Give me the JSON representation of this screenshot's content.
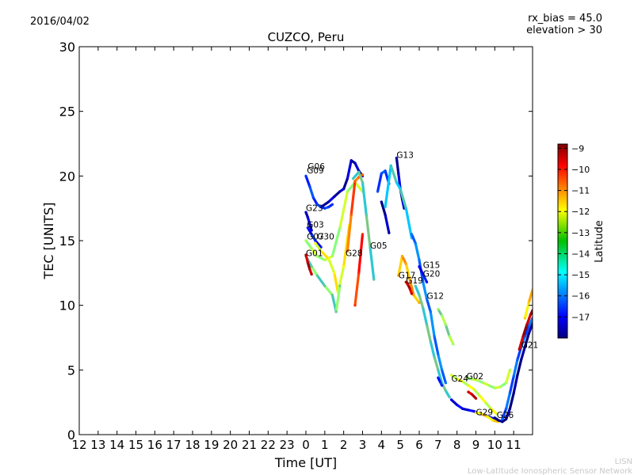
{
  "header": {
    "date": "2016/04/02",
    "rx_bias": "rx_bias = 45.0",
    "elevation": "elevation > 30"
  },
  "footer": {
    "line1": "LISN",
    "line2": "Low-Latitude Ionospheric Sensor Network"
  },
  "chart_data": {
    "type": "scatter",
    "title": "CUZCO, Peru",
    "xlabel": "Time [UT]",
    "ylabel": "TEC [UNITS]",
    "x_tick_labels": [
      "12",
      "13",
      "14",
      "15",
      "16",
      "17",
      "18",
      "19",
      "20",
      "21",
      "22",
      "23",
      "0",
      "1",
      "2",
      "3",
      "4",
      "5",
      "6",
      "7",
      "8",
      "9",
      "10",
      "11"
    ],
    "xlim": [
      12,
      36
    ],
    "ylim": [
      0,
      30
    ],
    "y_ticks": [
      0,
      5,
      10,
      15,
      20,
      25,
      30
    ],
    "grid": false,
    "colorbar": {
      "label": "Latitude",
      "range": [
        -18,
        -8.8
      ],
      "ticks": [
        -9,
        -10,
        -11,
        -12,
        -13,
        -14,
        -15,
        -16,
        -17
      ]
    },
    "satellite_labels": [
      {
        "label": "G06",
        "x": 24.1,
        "y": 20.5
      },
      {
        "label": "G09",
        "x": 24.05,
        "y": 20.2
      },
      {
        "label": "G23",
        "x": 24.0,
        "y": 17.3
      },
      {
        "label": "G03",
        "x": 24.05,
        "y": 16.0
      },
      {
        "label": "G07",
        "x": 24.05,
        "y": 15.1
      },
      {
        "label": "G30",
        "x": 24.6,
        "y": 15.1
      },
      {
        "label": "G01",
        "x": 24.0,
        "y": 13.8
      },
      {
        "label": "G28",
        "x": 26.1,
        "y": 13.8
      },
      {
        "label": "G05",
        "x": 27.4,
        "y": 14.4
      },
      {
        "label": "G13",
        "x": 28.8,
        "y": 21.4
      },
      {
        "label": "G15",
        "x": 30.2,
        "y": 12.9
      },
      {
        "label": "G20",
        "x": 30.2,
        "y": 12.2
      },
      {
        "label": "G17",
        "x": 28.9,
        "y": 12.1
      },
      {
        "label": "G19",
        "x": 29.3,
        "y": 11.7
      },
      {
        "label": "G12",
        "x": 30.4,
        "y": 10.5
      },
      {
        "label": "G24",
        "x": 31.7,
        "y": 4.1
      },
      {
        "label": "G02",
        "x": 32.5,
        "y": 4.3
      },
      {
        "label": "G29",
        "x": 33.0,
        "y": 1.5
      },
      {
        "label": "G26",
        "x": 34.1,
        "y": 1.3
      },
      {
        "label": "G21",
        "x": 35.4,
        "y": 6.7
      }
    ],
    "series": [
      {
        "label_ref": "G09",
        "lat": -16.2,
        "x": [
          24.0,
          24.2,
          24.4,
          24.6,
          24.8,
          25.0,
          25.2,
          25.4
        ],
        "y": [
          20.0,
          19.2,
          18.3,
          17.8,
          17.6,
          17.5,
          17.6,
          17.8
        ]
      },
      {
        "label_ref": "G06",
        "lat": -17.5,
        "x": [
          24.9,
          25.2,
          25.5,
          25.8,
          26.0,
          26.2,
          26.4,
          26.6,
          26.8,
          27.0
        ],
        "y": [
          17.7,
          18.0,
          18.4,
          18.8,
          19.0,
          19.8,
          21.2,
          21.0,
          20.4,
          20.0
        ]
      },
      {
        "label_ref": "G23",
        "lat": -17.3,
        "x": [
          24.0,
          24.1,
          24.2,
          24.3
        ],
        "y": [
          17.2,
          16.8,
          16.3,
          15.8
        ]
      },
      {
        "label_ref": "G03",
        "lat": -16.5,
        "x": [
          24.1,
          24.3,
          24.5,
          24.8
        ],
        "y": [
          16.0,
          15.5,
          15.0,
          14.5
        ]
      },
      {
        "label_ref": "G07",
        "lat": -13.0,
        "x": [
          24.0,
          24.3,
          24.6,
          25.0,
          25.4,
          25.8,
          26.2,
          26.6,
          27.0
        ],
        "y": [
          15.0,
          14.4,
          13.8,
          13.5,
          13.8,
          16.0,
          18.8,
          19.5,
          18.8
        ]
      },
      {
        "label_ref": "G30",
        "lat": -12.3,
        "x": [
          24.5,
          24.8,
          25.2,
          25.5,
          25.7,
          26.0,
          26.3
        ],
        "y": [
          14.8,
          14.2,
          13.6,
          12.5,
          11.0,
          13.0,
          16.2
        ]
      },
      {
        "label_ref": "G01",
        "lat": -13.6,
        "x": [
          24.0,
          24.3,
          24.6,
          25.0,
          25.4,
          25.6,
          25.8
        ],
        "y": [
          13.8,
          13.0,
          12.3,
          11.5,
          10.8,
          9.5,
          11.5
        ]
      },
      {
        "label_ref": "G01r",
        "lat": -9.3,
        "x": [
          24.0,
          24.1,
          24.2,
          24.3
        ],
        "y": [
          13.9,
          13.3,
          12.8,
          12.4
        ]
      },
      {
        "label_ref": "G28",
        "lat": -10.8,
        "x": [
          26.2,
          26.4,
          26.6,
          26.8,
          27.0
        ],
        "y": [
          14.2,
          17.0,
          19.6,
          19.9,
          20.1
        ]
      },
      {
        "label_ref": "G28b",
        "lat": -10.3,
        "x": [
          26.6,
          26.8,
          27.0
        ],
        "y": [
          10.0,
          12.5,
          15.5
        ]
      },
      {
        "label_ref": "G05",
        "lat": -13.8,
        "x": [
          26.5,
          26.8,
          27.0,
          27.2,
          27.4,
          27.6
        ],
        "y": [
          19.8,
          20.3,
          19.5,
          17.0,
          14.5,
          12.0
        ]
      },
      {
        "label_ref": "G05b",
        "lat": -16.0,
        "x": [
          27.8,
          28.0,
          28.2,
          28.4
        ],
        "y": [
          18.8,
          20.2,
          20.4,
          19.4
        ]
      },
      {
        "label_ref": "G13",
        "lat": -17.5,
        "x": [
          28.8,
          28.9,
          29.0,
          29.1,
          29.2
        ],
        "y": [
          21.4,
          20.2,
          19.0,
          18.2,
          17.5
        ]
      },
      {
        "label_ref": "G13b",
        "lat": -17.7,
        "x": [
          28.0,
          28.2,
          28.4
        ],
        "y": [
          18.0,
          17.0,
          15.6
        ]
      },
      {
        "label_ref": "G13c",
        "lat": -14.2,
        "x": [
          28.2,
          28.5,
          28.8,
          29.0,
          29.3,
          29.6
        ],
        "y": [
          17.6,
          20.8,
          19.5,
          19.0,
          17.5,
          15.2
        ]
      },
      {
        "label_ref": "G17",
        "lat": -11.5,
        "x": [
          28.9,
          29.1,
          29.3,
          29.5,
          29.7,
          30.0
        ],
        "y": [
          12.3,
          13.8,
          13.2,
          12.0,
          10.8,
          10.2
        ]
      },
      {
        "label_ref": "G19",
        "lat": -9.4,
        "x": [
          29.3,
          29.4,
          29.5,
          29.6
        ],
        "y": [
          11.8,
          11.6,
          11.3,
          10.9
        ]
      },
      {
        "label_ref": "G15",
        "lat": -15.5,
        "x": [
          29.6,
          29.8,
          30.0,
          30.2,
          30.4,
          30.6,
          30.8,
          31.0,
          31.2,
          31.4
        ],
        "y": [
          15.5,
          14.8,
          13.5,
          11.8,
          10.5,
          9.5,
          7.6,
          6.2,
          5.0,
          4.0
        ]
      },
      {
        "label_ref": "G20",
        "lat": -16.8,
        "x": [
          30.0,
          30.2,
          30.4
        ],
        "y": [
          13.0,
          12.4,
          11.8
        ]
      },
      {
        "label_ref": "G12",
        "lat": -13.8,
        "x": [
          29.8,
          30.0,
          30.2,
          30.4,
          30.6,
          30.8,
          31.0,
          31.2,
          31.4,
          31.6
        ],
        "y": [
          11.5,
          10.8,
          9.8,
          8.5,
          7.2,
          6.0,
          5.0,
          4.0,
          3.4,
          2.9
        ]
      },
      {
        "label_ref": "G12b",
        "lat": -13.2,
        "x": [
          31.0,
          31.2,
          31.4,
          31.6,
          31.8
        ],
        "y": [
          9.7,
          9.2,
          8.5,
          7.6,
          7.0
        ]
      },
      {
        "label_ref": "G24",
        "lat": -12.6,
        "x": [
          31.7,
          32.0,
          32.3,
          32.6,
          32.9,
          33.2,
          33.5,
          33.8,
          34.1
        ],
        "y": [
          4.6,
          4.3,
          4.1,
          3.8,
          3.5,
          3.0,
          2.5,
          2.0,
          1.6
        ]
      },
      {
        "label_ref": "G24r",
        "lat": -9.5,
        "x": [
          32.6,
          32.8,
          33.0
        ],
        "y": [
          3.3,
          3.1,
          2.8
        ]
      },
      {
        "label_ref": "G02",
        "lat": -13.0,
        "x": [
          32.5,
          32.8,
          33.1,
          33.4,
          33.7,
          34.0,
          34.3,
          34.6,
          34.8
        ],
        "y": [
          4.4,
          4.3,
          4.2,
          4.0,
          3.8,
          3.6,
          3.7,
          4.0,
          5.0
        ]
      },
      {
        "label_ref": "G29",
        "lat": -17.0,
        "x": [
          31.7,
          32.0,
          32.3,
          32.6,
          32.9,
          33.2,
          33.5,
          33.8,
          34.1
        ],
        "y": [
          2.7,
          2.3,
          2.0,
          1.9,
          1.8,
          1.6,
          1.5,
          1.3,
          1.2
        ]
      },
      {
        "label_ref": "G29b",
        "lat": -16.5,
        "x": [
          31.0,
          31.1,
          31.2
        ],
        "y": [
          4.4,
          4.1,
          3.8
        ]
      },
      {
        "label_ref": "G29y",
        "lat": -12.0,
        "x": [
          33.0,
          33.3,
          33.6,
          33.9,
          34.2
        ],
        "y": [
          1.7,
          1.6,
          1.4,
          1.1,
          1.0
        ]
      },
      {
        "label_ref": "G26",
        "lat": -18.0,
        "x": [
          34.0,
          34.2,
          34.4,
          34.6,
          34.8,
          35.0,
          35.2,
          35.4,
          35.6,
          35.8,
          36.0
        ],
        "y": [
          1.3,
          1.1,
          1.0,
          1.2,
          2.0,
          3.2,
          4.6,
          5.8,
          6.8,
          7.8,
          8.6
        ]
      },
      {
        "label_ref": "G21",
        "lat": -15.8,
        "x": [
          34.4,
          34.6,
          34.8,
          35.0,
          35.2,
          35.4,
          35.6,
          35.8,
          36.0
        ],
        "y": [
          1.2,
          2.0,
          3.2,
          4.5,
          5.8,
          6.8,
          7.6,
          8.4,
          9.0
        ]
      },
      {
        "label_ref": "G21r",
        "lat": -9.2,
        "x": [
          35.3,
          35.5,
          35.7,
          35.9,
          36.0
        ],
        "y": [
          6.6,
          7.6,
          8.5,
          9.3,
          9.6
        ]
      },
      {
        "label_ref": "G21y",
        "lat": -11.8,
        "x": [
          35.6,
          35.8,
          36.0
        ],
        "y": [
          9.0,
          10.2,
          11.2
        ]
      }
    ]
  }
}
